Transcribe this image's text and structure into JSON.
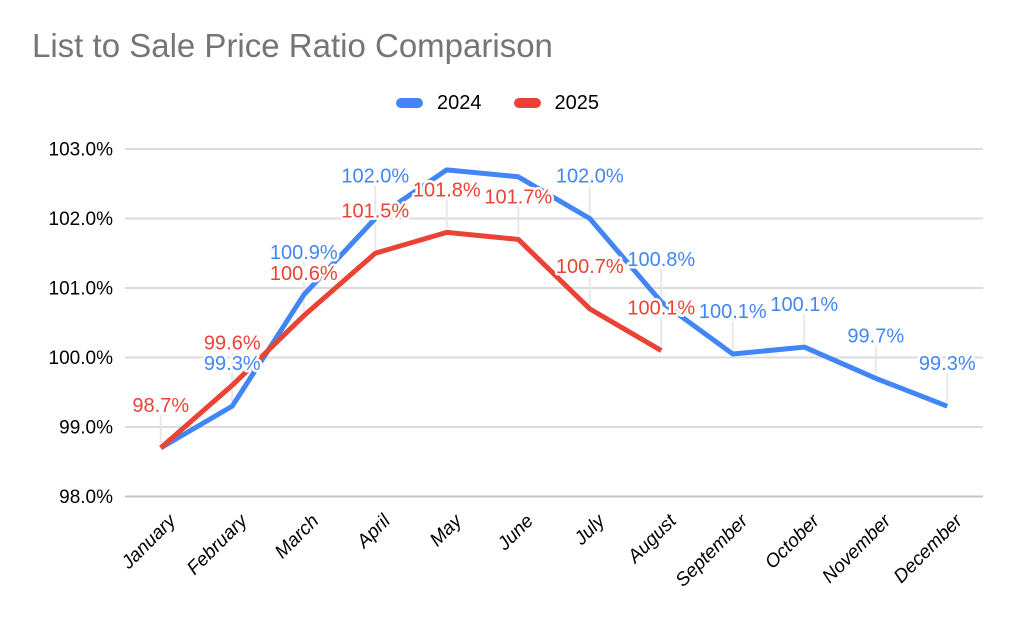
{
  "chart_data": {
    "type": "line",
    "title": "List to Sale Price Ratio Comparison",
    "title_color": "#757575",
    "xlabel": "",
    "ylabel": "",
    "categories": [
      "January",
      "February",
      "March",
      "April",
      "May",
      "June",
      "July",
      "August",
      "September",
      "October",
      "November",
      "December"
    ],
    "series": [
      {
        "name": "2024",
        "color": "#4285F4",
        "values": [
          98.7,
          99.3,
          100.9,
          102.0,
          102.7,
          102.6,
          102.0,
          100.8,
          100.05,
          100.15,
          99.7,
          99.3
        ],
        "labels": [
          null,
          "99.3%",
          "100.9%",
          "102.0%",
          null,
          null,
          "102.0%",
          "100.8%",
          "100.1%",
          "100.1%",
          "99.7%",
          "99.3%"
        ]
      },
      {
        "name": "2025",
        "color": "#EA4335",
        "values": [
          98.7,
          99.6,
          100.6,
          101.5,
          101.8,
          101.7,
          100.7,
          100.1
        ],
        "labels": [
          "98.7%",
          "99.6%",
          "100.6%",
          "101.5%",
          "101.8%",
          "101.7%",
          "100.7%",
          "100.1%"
        ]
      }
    ],
    "yticks": [
      {
        "value": 98,
        "label": "98.0%"
      },
      {
        "value": 99,
        "label": "99.0%"
      },
      {
        "value": 100,
        "label": "100.0%"
      },
      {
        "value": 101,
        "label": "101.0%"
      },
      {
        "value": 102,
        "label": "102.0%"
      },
      {
        "value": 103,
        "label": "103.0%"
      }
    ],
    "ylim": [
      98,
      103
    ],
    "grid": "horizontal",
    "gridline_color": "#dbdbdb",
    "baseline_color": "#c6c6c6",
    "axis_text_color": "#000000",
    "legend_position": "top"
  }
}
